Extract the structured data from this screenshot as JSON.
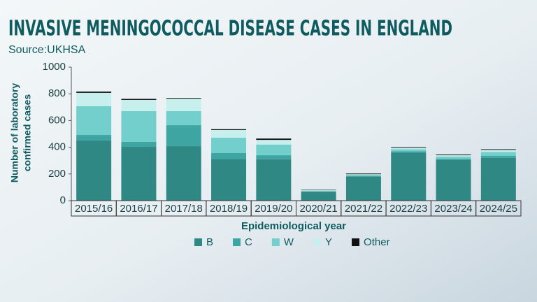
{
  "chart_data": {
    "type": "stacked_bar",
    "title": "INVASIVE MENINGOCOCCAL DISEASE CASES IN ENGLAND",
    "subtitle": "Source:UKHSA",
    "x_label": "Epidemiological year",
    "y_label": [
      "Number of laboratory",
      "confirmed cases"
    ],
    "categories": [
      "2015/16",
      "2016/17",
      "2017/18",
      "2018/19",
      "2019/20",
      "2020/21",
      "2021/22",
      "2022/23",
      "2023/24",
      "2024/25"
    ],
    "series": [
      {
        "name": "B",
        "color": "#2f8884",
        "values": [
          450,
          403,
          408,
          309,
          310,
          65,
          180,
          360,
          305,
          320
        ]
      },
      {
        "name": "C",
        "color": "#3ea5a2",
        "values": [
          42,
          37,
          157,
          47,
          30,
          3,
          5,
          10,
          10,
          15
        ]
      },
      {
        "name": "W",
        "color": "#72cfcb",
        "values": [
          215,
          230,
          105,
          115,
          80,
          5,
          8,
          15,
          15,
          30
        ]
      },
      {
        "name": "Y",
        "color": "#c6efed",
        "values": [
          100,
          84,
          94,
          58,
          35,
          5,
          5,
          10,
          10,
          15
        ]
      },
      {
        "name": "Other",
        "color": "#111111",
        "values": [
          10,
          8,
          5,
          6,
          10,
          3,
          5,
          5,
          5,
          5
        ]
      }
    ],
    "ylim": [
      0,
      1000
    ],
    "yticks": [
      0,
      200,
      400,
      600,
      800,
      1000
    ]
  }
}
